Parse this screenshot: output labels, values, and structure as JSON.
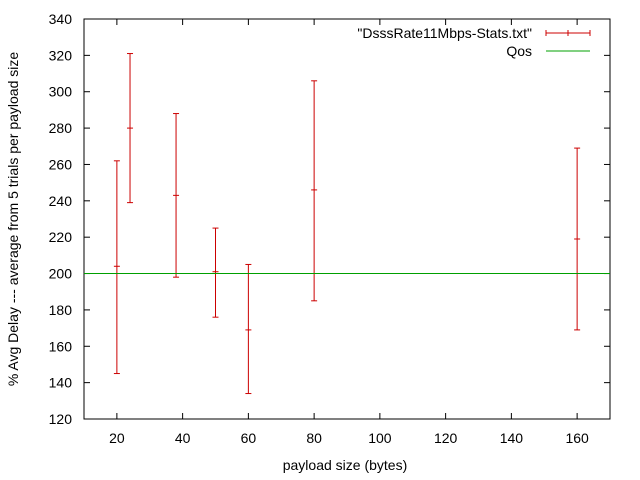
{
  "chart_data": {
    "type": "errorbar",
    "xlabel": "payload size (bytes)",
    "ylabel": "% Avg Delay --- average from 5 trials per payload size",
    "xlim": [
      10,
      170
    ],
    "ylim": [
      120,
      340
    ],
    "xticks": [
      20,
      40,
      60,
      80,
      100,
      120,
      140,
      160
    ],
    "yticks": [
      120,
      140,
      160,
      180,
      200,
      220,
      240,
      260,
      280,
      300,
      320,
      340
    ],
    "grid": false,
    "legend_position": "top-right",
    "series": [
      {
        "name": "\"DsssRate11Mbps-Stats.txt\"",
        "color": "#cc0000",
        "style": "errorbars",
        "points": [
          {
            "x": 20,
            "y": 204,
            "ylow": 145,
            "yhigh": 262
          },
          {
            "x": 24,
            "y": 280,
            "ylow": 239,
            "yhigh": 321
          },
          {
            "x": 38,
            "y": 243,
            "ylow": 198,
            "yhigh": 288
          },
          {
            "x": 50,
            "y": 201,
            "ylow": 176,
            "yhigh": 225
          },
          {
            "x": 60,
            "y": 169,
            "ylow": 134,
            "yhigh": 205
          },
          {
            "x": 80,
            "y": 246,
            "ylow": 185,
            "yhigh": 306
          },
          {
            "x": 160,
            "y": 219,
            "ylow": 169,
            "yhigh": 269
          }
        ]
      },
      {
        "name": "Qos",
        "color": "#00a000",
        "style": "hline",
        "y": 200
      }
    ]
  }
}
